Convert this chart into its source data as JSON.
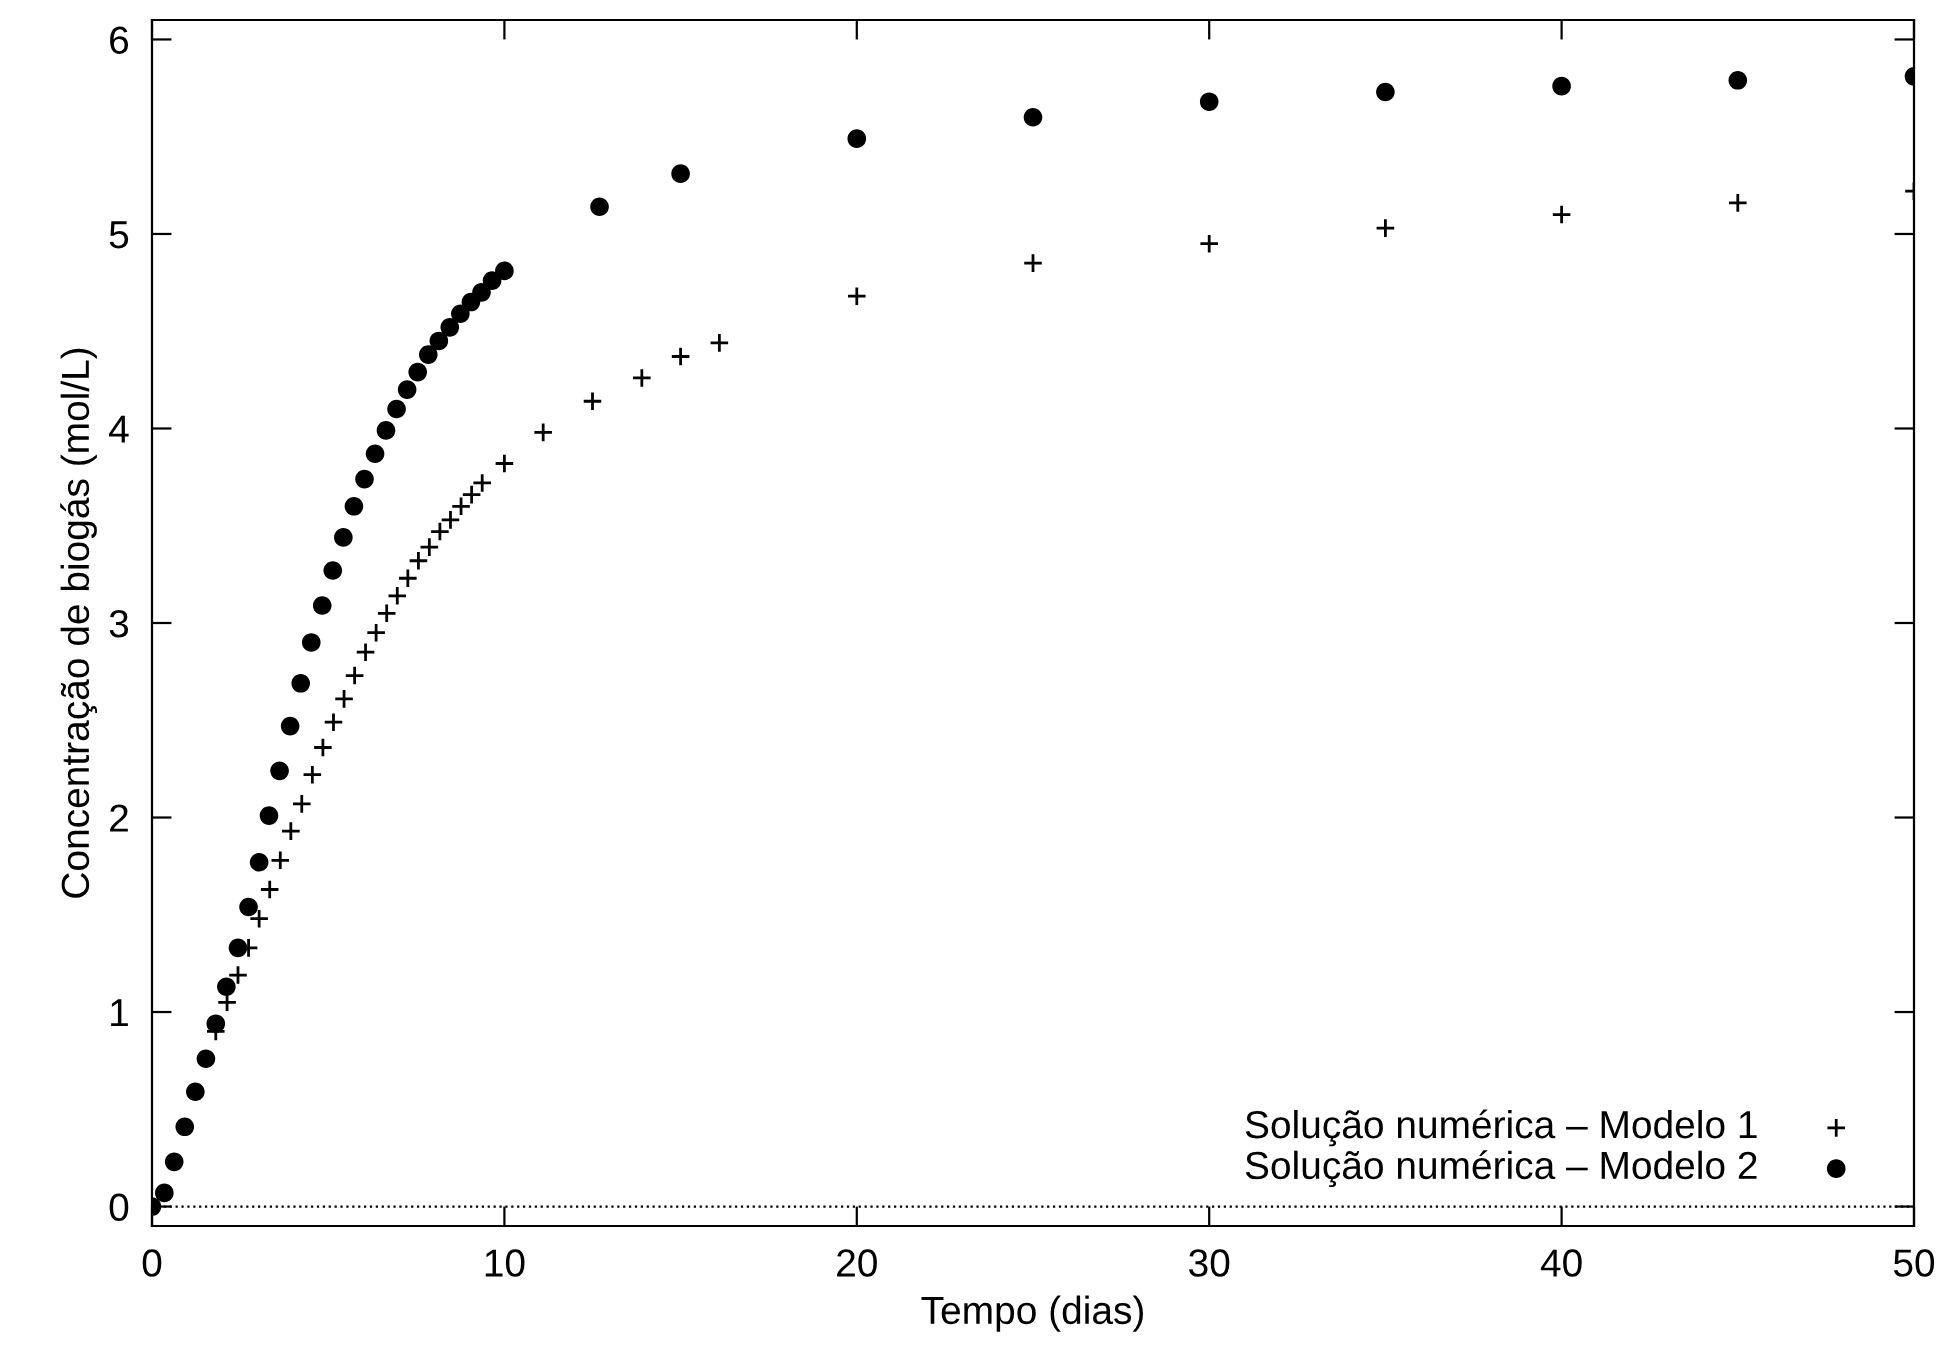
{
  "chart_data": {
    "type": "scatter",
    "xlabel": "Tempo (dias)",
    "ylabel": "Concentração de biogás (mol/L)",
    "xlim": [
      0,
      50
    ],
    "ylim": [
      -0.1,
      6.1
    ],
    "xticks": [
      0,
      10,
      20,
      30,
      40,
      50
    ],
    "yticks": [
      0,
      1,
      2,
      3,
      4,
      5,
      6
    ],
    "grid": false,
    "legend": "bottom right",
    "ref_lines": [
      {
        "axis": "y",
        "value": 0,
        "color": "#000000",
        "line_style": "dotted"
      }
    ],
    "series": [
      {
        "name": "Solução numérica – Modelo 1",
        "color": "#000000",
        "marker": "cross",
        "x": [
          1.81,
          2.13,
          2.44,
          2.74,
          3.04,
          3.34,
          3.64,
          3.94,
          4.25,
          4.55,
          4.85,
          5.15,
          5.45,
          5.75,
          6.06,
          6.36,
          6.66,
          6.96,
          7.26,
          7.56,
          7.87,
          8.17,
          8.47,
          8.77,
          9.07,
          9.37,
          10,
          11.1,
          12.5,
          13.9,
          15,
          16.1,
          20,
          25,
          30,
          35,
          40,
          45,
          50
        ],
        "values": [
          0.9,
          1.05,
          1.19,
          1.33,
          1.48,
          1.63,
          1.78,
          1.93,
          2.07,
          2.22,
          2.36,
          2.49,
          2.61,
          2.73,
          2.85,
          2.95,
          3.05,
          3.14,
          3.23,
          3.32,
          3.39,
          3.47,
          3.53,
          3.6,
          3.66,
          3.72,
          3.82,
          3.98,
          4.14,
          4.26,
          4.37,
          4.44,
          4.68,
          4.85,
          4.95,
          5.03,
          5.1,
          5.16,
          5.22
        ]
      },
      {
        "name": "Solução numérica – Modelo 2",
        "color": "#000000",
        "marker": "circle",
        "x": [
          0,
          0.35,
          0.63,
          0.93,
          1.23,
          1.53,
          1.81,
          2.11,
          2.44,
          2.74,
          3.04,
          3.32,
          3.62,
          3.92,
          4.22,
          4.52,
          4.83,
          5.13,
          5.43,
          5.73,
          6.03,
          6.33,
          6.64,
          6.94,
          7.24,
          7.54,
          7.84,
          8.14,
          8.45,
          8.75,
          9.05,
          9.35,
          9.65,
          10,
          12.7,
          15,
          20,
          25,
          30,
          35,
          40,
          45,
          50
        ],
        "values": [
          0,
          0.07,
          0.23,
          0.41,
          0.59,
          0.76,
          0.94,
          1.13,
          1.33,
          1.54,
          1.77,
          2.01,
          2.24,
          2.47,
          2.69,
          2.9,
          3.09,
          3.27,
          3.44,
          3.6,
          3.74,
          3.87,
          3.99,
          4.1,
          4.2,
          4.29,
          4.38,
          4.45,
          4.52,
          4.59,
          4.65,
          4.7,
          4.76,
          4.81,
          5.14,
          5.31,
          5.49,
          5.6,
          5.68,
          5.73,
          5.76,
          5.79,
          5.81
        ]
      }
    ]
  }
}
